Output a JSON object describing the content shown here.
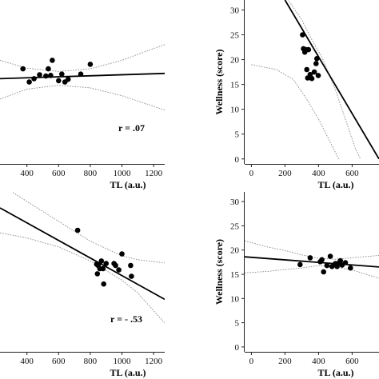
{
  "chart_data": [
    {
      "type": "scatter",
      "panel": "top-left",
      "xlabel": "TL (a.u.)",
      "ylabel": "",
      "xlim": [
        230,
        1270
      ],
      "ylim": [
        7,
        32
      ],
      "xticks": [
        400,
        600,
        800,
        1000,
        1200
      ],
      "yticks": [],
      "annotation": "r = .07",
      "x": [
        375,
        415,
        445,
        480,
        520,
        535,
        550,
        560,
        600,
        620,
        640,
        660,
        740,
        800
      ],
      "y": [
        21.5,
        19.5,
        20,
        20.6,
        20.4,
        21.5,
        20.5,
        22.8,
        19.7,
        20.7,
        19.5,
        19.9,
        20.7,
        22.2
      ],
      "fit_line": [
        [
          230,
          20.0
        ],
        [
          1270,
          20.8
        ]
      ],
      "ci_upper": [
        [
          230,
          22.8
        ],
        [
          400,
          21.6
        ],
        [
          600,
          21.1
        ],
        [
          800,
          21.5
        ],
        [
          1000,
          22.8
        ],
        [
          1200,
          24.6
        ],
        [
          1270,
          25.2
        ]
      ],
      "ci_lower": [
        [
          230,
          16.9
        ],
        [
          400,
          18.4
        ],
        [
          600,
          19.0
        ],
        [
          800,
          18.6
        ],
        [
          1000,
          17.4
        ],
        [
          1200,
          15.8
        ],
        [
          1270,
          15.2
        ]
      ]
    },
    {
      "type": "scatter",
      "panel": "top-right",
      "xlabel": "TL (a.u.)",
      "ylabel": "Wellness (score)",
      "xlim": [
        -40,
        760
      ],
      "ylim": [
        -1,
        32
      ],
      "xticks": [
        0,
        200,
        400,
        600
      ],
      "yticks": [
        0,
        5,
        10,
        15,
        20,
        25,
        30
      ],
      "annotation": "",
      "x": [
        305,
        310,
        318,
        325,
        330,
        335,
        340,
        350,
        360,
        375,
        385,
        390,
        398
      ],
      "y": [
        25,
        22.2,
        21.5,
        22,
        18,
        16.3,
        22,
        17,
        16.2,
        17.5,
        19.2,
        20.2,
        16.8
      ],
      "fit_line": [
        [
          200,
          32
        ],
        [
          760,
          0
        ]
      ],
      "ci_upper": [
        [
          200,
          33
        ],
        [
          300,
          28
        ],
        [
          360,
          24
        ],
        [
          420,
          20.5
        ],
        [
          500,
          14
        ],
        [
          560,
          8
        ],
        [
          620,
          2
        ],
        [
          650,
          0
        ]
      ],
      "ci_lower": [
        [
          0,
          19
        ],
        [
          150,
          18
        ],
        [
          250,
          16
        ],
        [
          330,
          12
        ],
        [
          400,
          8
        ],
        [
          460,
          4
        ],
        [
          520,
          0
        ]
      ]
    },
    {
      "type": "scatter",
      "panel": "bottom-left",
      "xlabel": "TL (a.u.)",
      "ylabel": "",
      "xlim": [
        230,
        1270
      ],
      "ylim": [
        7,
        32
      ],
      "xticks": [
        400,
        600,
        800,
        1000,
        1200
      ],
      "yticks": [],
      "annotation": "r = - .53",
      "x": [
        720,
        840,
        845,
        850,
        860,
        870,
        880,
        885,
        900,
        950,
        960,
        980,
        1000,
        1055,
        1060
      ],
      "y": [
        26,
        20.7,
        19.2,
        20.5,
        20,
        21.2,
        20,
        17.6,
        20.8,
        20.8,
        20.5,
        19.8,
        22.3,
        20.5,
        18.8
      ],
      "fit_line": [
        [
          230,
          29.5
        ],
        [
          1270,
          15.2
        ]
      ],
      "ci_upper": [
        [
          230,
          33.2
        ],
        [
          400,
          30.5
        ],
        [
          600,
          27.4
        ],
        [
          800,
          24.3
        ],
        [
          1000,
          22.0
        ],
        [
          1100,
          21.4
        ],
        [
          1270,
          20.9
        ]
      ],
      "ci_lower": [
        [
          230,
          25.6
        ],
        [
          400,
          24.8
        ],
        [
          600,
          23.4
        ],
        [
          800,
          21.2
        ],
        [
          1000,
          18.2
        ],
        [
          1100,
          16.2
        ],
        [
          1270,
          11.5
        ]
      ]
    },
    {
      "type": "scatter",
      "panel": "bottom-right",
      "xlabel": "TL (a.u.)",
      "ylabel": "Wellness (score)",
      "xlim": [
        -40,
        760
      ],
      "ylim": [
        -1,
        32
      ],
      "xticks": [
        0,
        200,
        400,
        600
      ],
      "yticks": [
        0,
        5,
        10,
        15,
        20,
        25,
        30
      ],
      "annotation": "",
      "x": [
        290,
        350,
        410,
        420,
        430,
        450,
        470,
        480,
        500,
        510,
        520,
        530,
        540,
        560,
        590
      ],
      "y": [
        17,
        18.4,
        17.6,
        18,
        15.5,
        16.8,
        18.7,
        16.6,
        17.2,
        16.6,
        17.3,
        17.8,
        16.9,
        17.4,
        16.3
      ],
      "fit_line": [
        [
          -40,
          18.6
        ],
        [
          760,
          16.5
        ]
      ],
      "ci_upper": [
        [
          -40,
          21.9
        ],
        [
          100,
          20.6
        ],
        [
          200,
          19.9
        ],
        [
          300,
          19.0
        ],
        [
          400,
          18.3
        ],
        [
          500,
          18.1
        ],
        [
          600,
          18.4
        ],
        [
          700,
          18.7
        ],
        [
          760,
          18.9
        ]
      ],
      "ci_lower": [
        [
          -40,
          15.3
        ],
        [
          100,
          15.6
        ],
        [
          200,
          16.0
        ],
        [
          300,
          16.3
        ],
        [
          400,
          16.8
        ],
        [
          500,
          16.5
        ],
        [
          600,
          15.9
        ],
        [
          700,
          14.8
        ],
        [
          760,
          14.2
        ]
      ]
    }
  ]
}
